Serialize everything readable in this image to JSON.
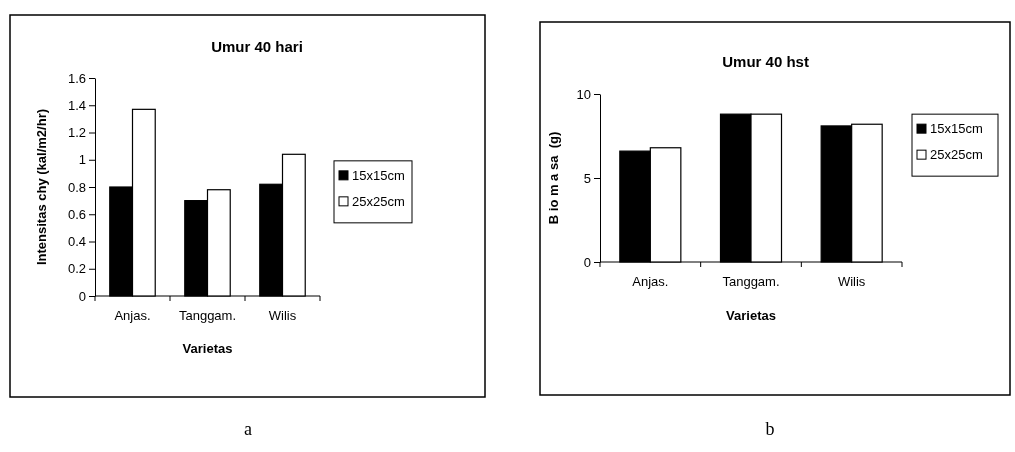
{
  "chart_data": [
    {
      "type": "bar",
      "title": "Umur 40 hari",
      "xlabel": "Varietas",
      "ylabel": "Intensitas chy (kal/m2/hr)",
      "categories": [
        "Anjas.",
        "Tanggam.",
        "Wilis"
      ],
      "series": [
        {
          "name": "15x15cm",
          "color": "#000000",
          "values": [
            0.8,
            0.7,
            0.82
          ]
        },
        {
          "name": "25x25cm",
          "color": "#ffffff",
          "values": [
            1.37,
            0.78,
            1.04
          ]
        }
      ],
      "ylim": [
        0,
        1.6
      ],
      "yticks": [
        0,
        0.2,
        0.4,
        0.6,
        0.8,
        1,
        1.2,
        1.4,
        1.6
      ],
      "legend": "right",
      "annotations": [
        "a"
      ]
    },
    {
      "type": "bar",
      "title": "Umur 40 hst",
      "xlabel": "Varietas",
      "ylabel": "B io m a sa  (g)",
      "categories": [
        "Anjas.",
        "Tanggam.",
        "Wilis"
      ],
      "series": [
        {
          "name": "15x15cm",
          "color": "#000000",
          "values": [
            6.6,
            8.8,
            8.1
          ]
        },
        {
          "name": "25x25cm",
          "color": "#ffffff",
          "values": [
            6.8,
            8.8,
            8.2
          ]
        }
      ],
      "ylim": [
        0,
        10
      ],
      "yticks": [
        0,
        5,
        10
      ],
      "legend": "right",
      "annotations": [
        "b"
      ]
    }
  ]
}
